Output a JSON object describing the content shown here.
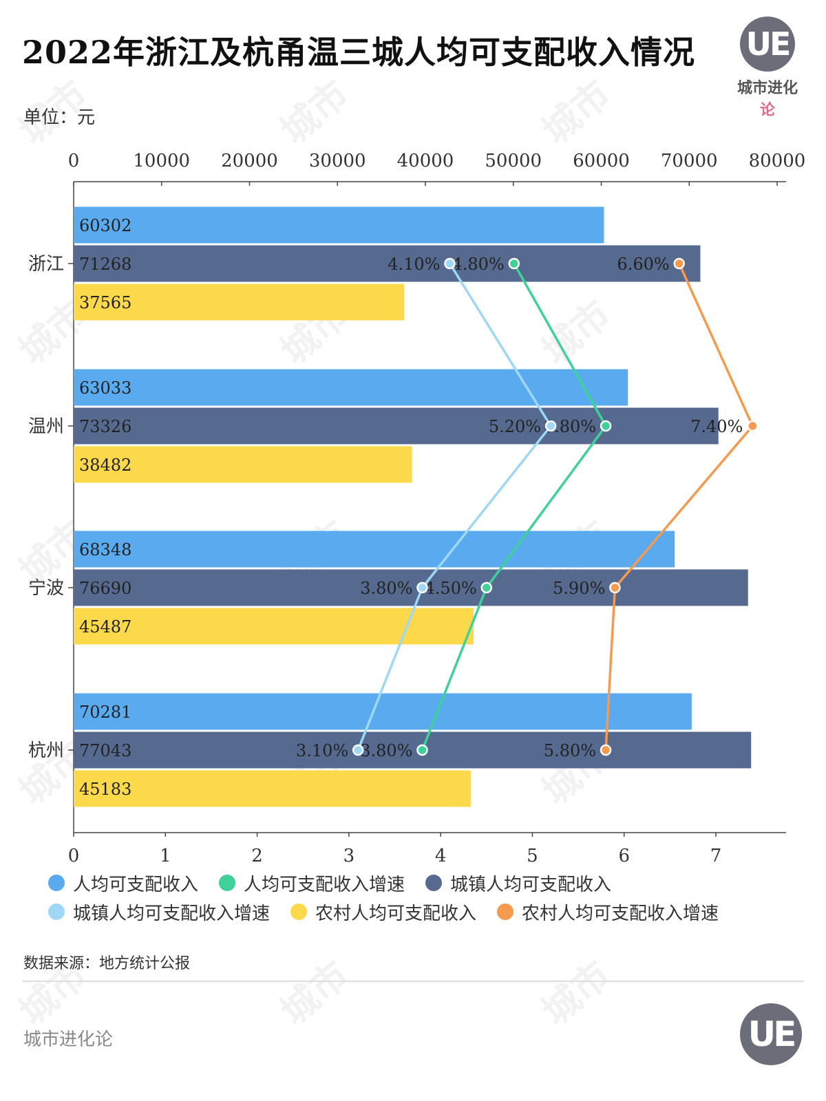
{
  "title": "2022年浙江及杭甬温三城人均可支配收入情况",
  "unit": "单位：元",
  "logo": {
    "mark": "UE",
    "name_prefix": "城市进化",
    "name_suffix": "论"
  },
  "source": "数据来源：地方统计公报",
  "footer": {
    "brand": "城市进化论",
    "logo_mark": "UE"
  },
  "watermark": "城市",
  "colors": {
    "income": "#5aaaf0",
    "urban_income": "#566a90",
    "rural_income": "#fcd94a",
    "income_growth": "#3fd19a",
    "urban_growth": "#9fd8f6",
    "rural_growth": "#f59a4e"
  },
  "chart_data": {
    "type": "bar",
    "orientation": "horizontal",
    "categories": [
      "浙江",
      "温州",
      "宁波",
      "杭州"
    ],
    "top_axis": {
      "ticks": [
        "0",
        "10000",
        "20000",
        "30000",
        "40000",
        "50000",
        "60000",
        "70000",
        "80000"
      ],
      "range": [
        0,
        80000
      ]
    },
    "bottom_axis": {
      "ticks": [
        "0",
        "1",
        "2",
        "3",
        "4",
        "5",
        "6",
        "7"
      ],
      "range": [
        0,
        7.8
      ]
    },
    "bar_series": [
      {
        "name": "人均可支配收入",
        "color_key": "income",
        "values": [
          60302,
          63033,
          68348,
          70281
        ]
      },
      {
        "name": "城镇人均可支配收入",
        "color_key": "urban_income",
        "values": [
          71268,
          73326,
          76690,
          77043
        ]
      },
      {
        "name": "农村人均可支配收入",
        "color_key": "rural_income",
        "values": [
          37565,
          38482,
          45487,
          45183
        ]
      }
    ],
    "line_series": [
      {
        "name": "人均可支配收入增速",
        "color_key": "income_growth",
        "values": [
          4.8,
          5.8,
          4.5,
          3.8
        ],
        "labels": [
          "4.80%",
          "5.80%",
          "4.50%",
          "3.80%"
        ]
      },
      {
        "name": "城镇人均可支配收入增速",
        "color_key": "urban_growth",
        "values": [
          4.1,
          5.2,
          3.8,
          3.1
        ],
        "labels": [
          "4.10%",
          "5.20%",
          "3.80%",
          "3.10%"
        ]
      },
      {
        "name": "农村人均可支配收入增速",
        "color_key": "rural_growth",
        "values": [
          6.6,
          7.4,
          5.9,
          5.8
        ],
        "labels": [
          "6.60%",
          "7.40%",
          "5.90%",
          "5.80%"
        ]
      }
    ],
    "legend": [
      {
        "label": "人均可支配收入",
        "color_key": "income"
      },
      {
        "label": "人均可支配收入增速",
        "color_key": "income_growth"
      },
      {
        "label": "城镇人均可支配收入",
        "color_key": "urban_income"
      },
      {
        "label": "城镇人均可支配收入增速",
        "color_key": "urban_growth"
      },
      {
        "label": "农村人均可支配收入",
        "color_key": "rural_income"
      },
      {
        "label": "农村人均可支配收入增速",
        "color_key": "rural_growth"
      }
    ],
    "legend_position": "bottom"
  }
}
